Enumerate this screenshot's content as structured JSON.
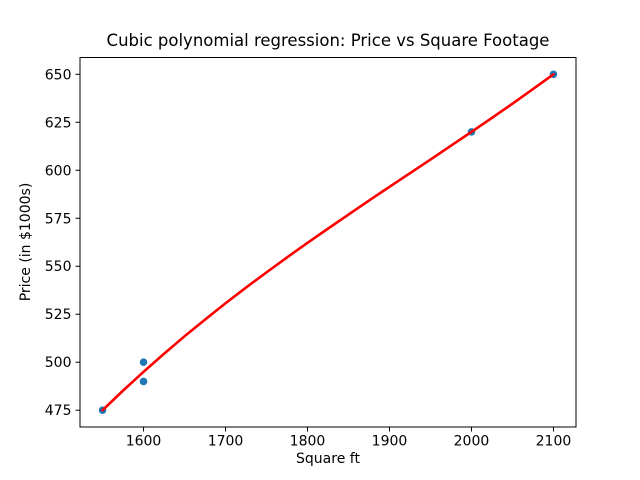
{
  "chart_data": {
    "type": "scatter",
    "title": "Cubic polynomial regression: Price vs Square Footage",
    "xlabel": "Square ft",
    "ylabel": "Price (in $1000s)",
    "xlim": [
      1522.5,
      2127.5
    ],
    "ylim": [
      466.25,
      658.75
    ],
    "x_ticks": [
      1600,
      1700,
      1800,
      1900,
      2000,
      2100
    ],
    "y_ticks": [
      475,
      500,
      525,
      550,
      575,
      600,
      625,
      650
    ],
    "grid": false,
    "legend_position": "none",
    "background_color": "#ffffff",
    "axes_color": "#000000",
    "series": [
      {
        "name": "observed-data",
        "type": "scatter",
        "color": "#1f77b4",
        "points": [
          [
            1550,
            475
          ],
          [
            1600,
            500
          ],
          [
            1600,
            490
          ],
          [
            2000,
            620
          ],
          [
            2100,
            650
          ]
        ]
      },
      {
        "name": "cubic-fit",
        "type": "line",
        "color": "#ff0000",
        "points": [
          [
            1550,
            475.0
          ],
          [
            1575,
            485.2
          ],
          [
            1600,
            495.0
          ],
          [
            1625,
            504.4
          ],
          [
            1650,
            513.5
          ],
          [
            1675,
            522.2
          ],
          [
            1700,
            530.7
          ],
          [
            1725,
            538.9
          ],
          [
            1750,
            546.8
          ],
          [
            1775,
            554.6
          ],
          [
            1800,
            562.2
          ],
          [
            1825,
            569.6
          ],
          [
            1850,
            576.9
          ],
          [
            1875,
            584.2
          ],
          [
            1900,
            591.4
          ],
          [
            1925,
            598.5
          ],
          [
            1950,
            605.6
          ],
          [
            1975,
            612.8
          ],
          [
            2000,
            620.0
          ],
          [
            2025,
            627.3
          ],
          [
            2050,
            634.7
          ],
          [
            2075,
            642.3
          ],
          [
            2100,
            650.0
          ]
        ]
      }
    ]
  }
}
